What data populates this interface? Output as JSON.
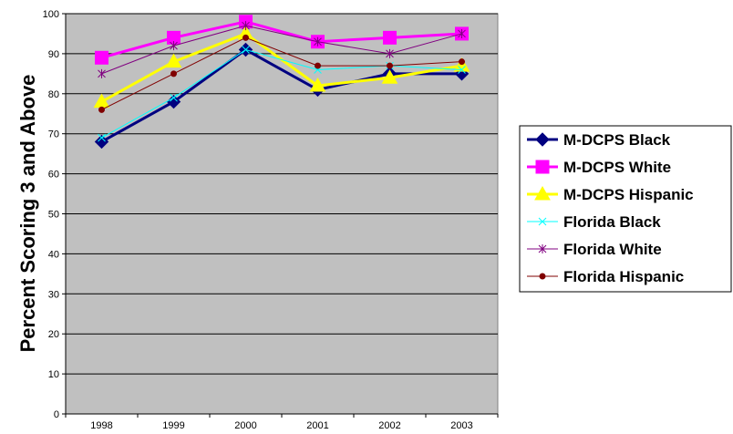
{
  "chart_data": {
    "type": "line",
    "title": "",
    "xlabel": "",
    "ylabel": "Percent Scoring 3 and Above",
    "categories": [
      "1998",
      "1999",
      "2000",
      "2001",
      "2002",
      "2003"
    ],
    "ylim": [
      0,
      100
    ],
    "yticks": [
      0,
      10,
      20,
      30,
      40,
      50,
      60,
      70,
      80,
      90,
      100
    ],
    "grid": "horizontal",
    "plot_background": "#c0c0c0",
    "legend_position": "right",
    "series": [
      {
        "name": "M-DCPS Black",
        "values": [
          68,
          78,
          91,
          81,
          85,
          85
        ],
        "color": "#000080",
        "marker": "diamond",
        "line": "thick"
      },
      {
        "name": "M-DCPS White",
        "values": [
          89,
          94,
          98,
          93,
          94,
          95
        ],
        "color": "#ff00ff",
        "marker": "square",
        "line": "thick"
      },
      {
        "name": "M-DCPS Hispanic",
        "values": [
          78,
          88,
          95,
          82,
          84,
          87
        ],
        "color": "#ffff00",
        "marker": "triangle",
        "line": "thick"
      },
      {
        "name": "Florida Black",
        "values": [
          69,
          79,
          91,
          86,
          87,
          86
        ],
        "color": "#00ffff",
        "marker": "x",
        "line": "thin"
      },
      {
        "name": "Florida White",
        "values": [
          85,
          92,
          97,
          93,
          90,
          95
        ],
        "color": "#800080",
        "marker": "star",
        "line": "thin"
      },
      {
        "name": "Florida Hispanic",
        "values": [
          76,
          85,
          94,
          87,
          87,
          88
        ],
        "color": "#800000",
        "marker": "circle",
        "line": "thin"
      }
    ]
  }
}
